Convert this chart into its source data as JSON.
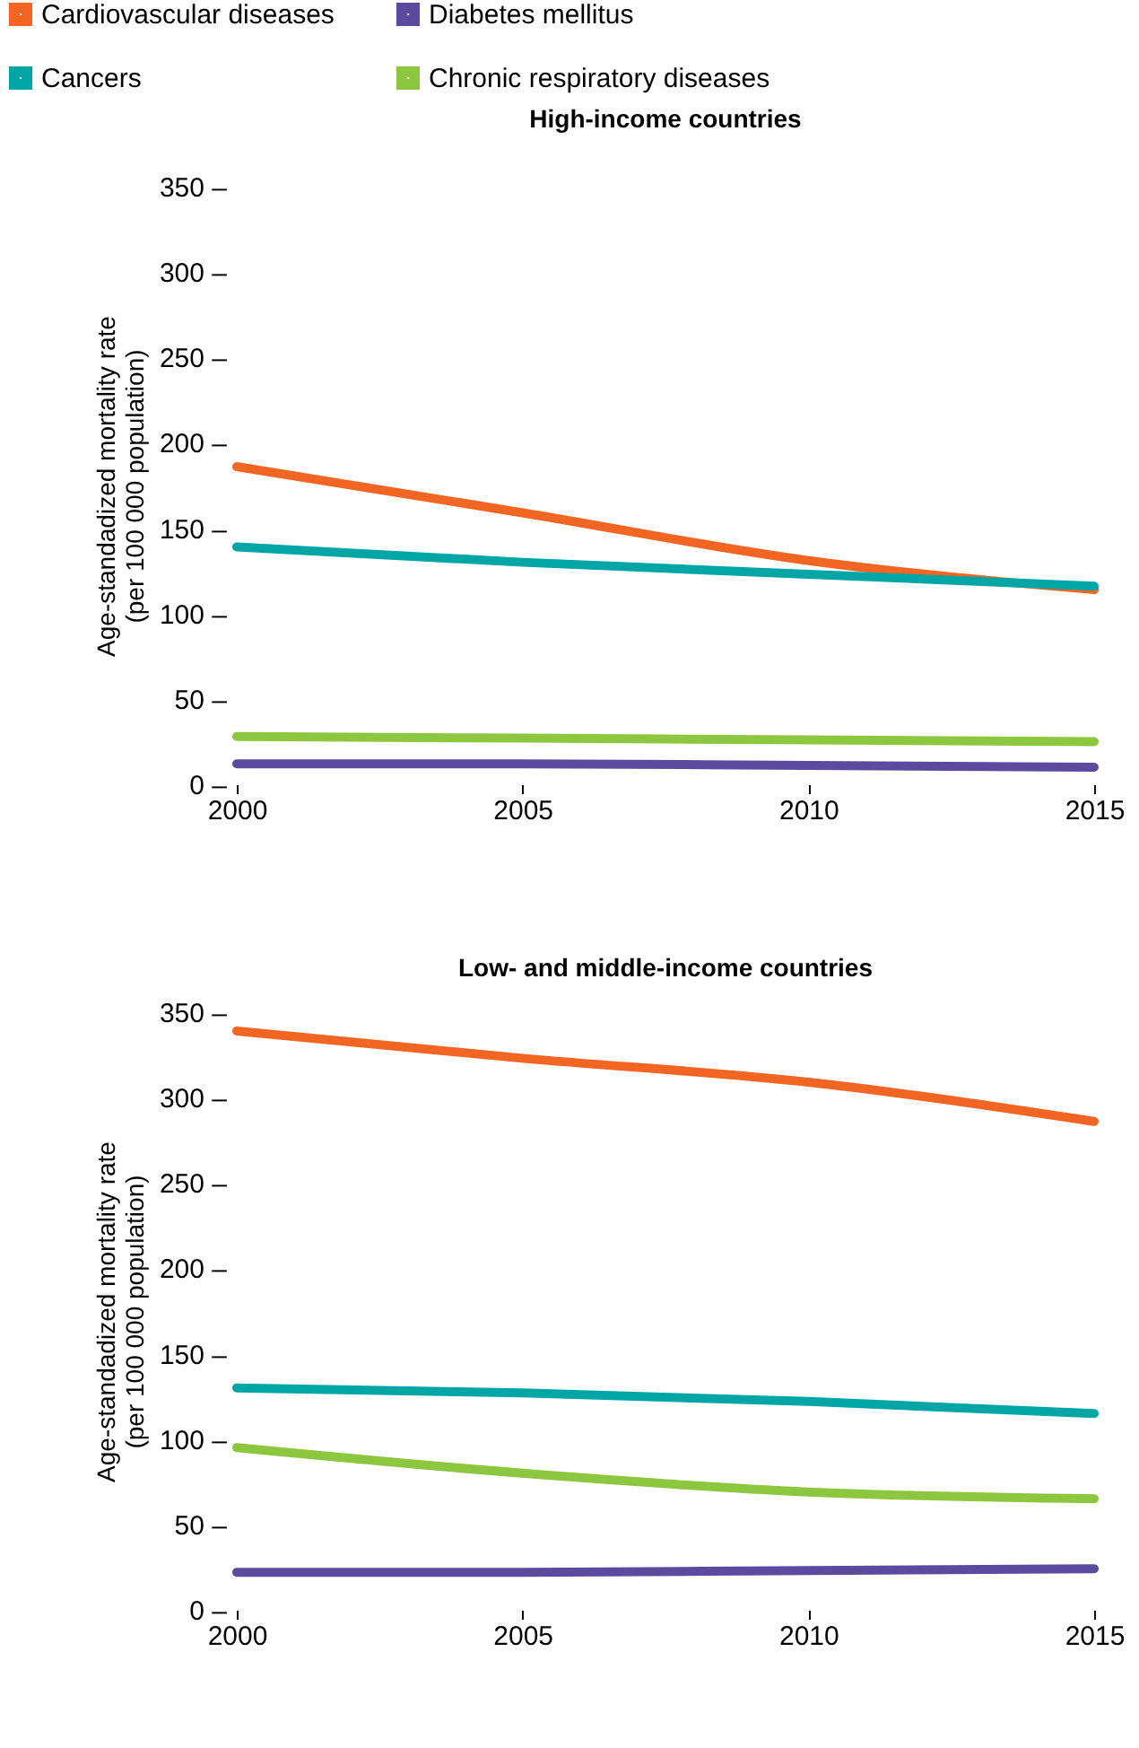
{
  "chart_data": [
    {
      "type": "line",
      "title": "High-income countries",
      "ylabel": "Age-standadized mortality rate\n(per 100 000 population)",
      "x": [
        2000,
        2005,
        2010,
        2015
      ],
      "xlim": [
        2000,
        2015
      ],
      "xticks": [
        2000,
        2005,
        2010,
        2015
      ],
      "ylim": [
        0,
        350
      ],
      "yticks": [
        {
          "value": 0,
          "label": "0 –"
        },
        {
          "value": 50,
          "label": "50 –"
        },
        {
          "value": 100,
          "label": "100 –"
        },
        {
          "value": 150,
          "label": "150 –"
        },
        {
          "value": 200,
          "label": "200 –"
        },
        {
          "value": 250,
          "label": "250 –"
        },
        {
          "value": 300,
          "label": "300 –"
        },
        {
          "value": 350,
          "label": "350 –"
        }
      ],
      "legend": "top left",
      "grid": false,
      "series": [
        {
          "name": "Cardiovascular diseases",
          "color": "#f26522",
          "values": [
            186,
            159,
            131,
            114
          ]
        },
        {
          "name": "Diabetes mellitus",
          "color": "#5b4a9e",
          "values": [
            12,
            12,
            11,
            10
          ]
        },
        {
          "name": "Cancers",
          "color": "#00a5a5",
          "values": [
            139,
            130,
            123,
            116
          ]
        },
        {
          "name": "Chronic respiratory diseases",
          "color": "#8dc63f",
          "values": [
            28,
            27,
            26,
            25
          ]
        }
      ]
    },
    {
      "type": "line",
      "title": "Low- and middle-income countries",
      "ylabel": "Age-standadized mortality rate\n(per 100 000 population)",
      "x": [
        2000,
        2005,
        2010,
        2015
      ],
      "xlim": [
        2000,
        2015
      ],
      "xticks": [
        2000,
        2005,
        2010,
        2015
      ],
      "ylim": [
        0,
        350
      ],
      "yticks": [
        {
          "value": 0,
          "label": "0 –"
        },
        {
          "value": 50,
          "label": "50 –"
        },
        {
          "value": 100,
          "label": "100 –"
        },
        {
          "value": 150,
          "label": "150 –"
        },
        {
          "value": 200,
          "label": "200 –"
        },
        {
          "value": 250,
          "label": "250 –"
        },
        {
          "value": 300,
          "label": "300 –"
        },
        {
          "value": 350,
          "label": "350 –"
        }
      ],
      "grid": false,
      "series": [
        {
          "color": "#f26522",
          "values": [
            339,
            323,
            309,
            286
          ]
        },
        {
          "color": "#5b4a9e",
          "values": [
            22,
            22,
            23,
            24
          ]
        },
        {
          "color": "#00a5a5",
          "values": [
            130,
            127,
            122,
            115
          ]
        },
        {
          "color": "#8dc63f",
          "values": [
            95,
            80,
            69,
            65
          ]
        }
      ]
    }
  ]
}
